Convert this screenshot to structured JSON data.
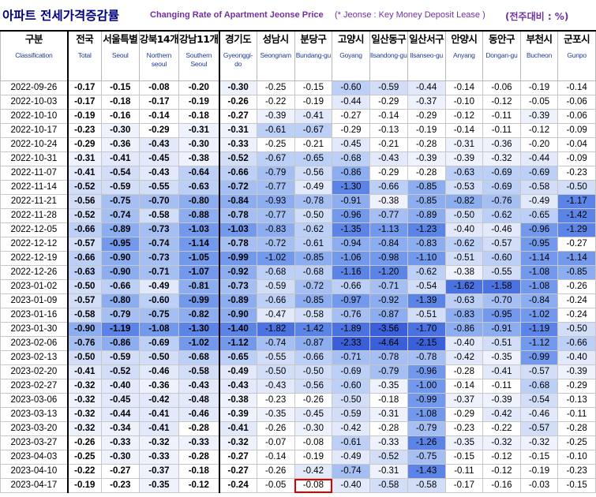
{
  "title": {
    "korean": "아파트 전세가격증감률",
    "english": "Changing Rate of Apartment Jeonse Price",
    "note": "(* Jeonse : Key Money Deposit Lease )",
    "unit": "(전주대비 : %)"
  },
  "colors": {
    "title_korean": "#000080",
    "title_english": "#7030a0",
    "header_english": "#1f3c99",
    "highlight_box": "#e00000"
  },
  "columns": [
    {
      "ko": "구분",
      "en": "Classification"
    },
    {
      "ko": "전국",
      "en": "Total"
    },
    {
      "ko": "서울특별",
      "en": "Seoul"
    },
    {
      "ko": "강북14개",
      "en": "Northern seoul"
    },
    {
      "ko": "강남11개",
      "en": "Southern Seoul"
    },
    {
      "ko": "경기도",
      "en": "Gyeonggi-do"
    },
    {
      "ko": "성남시",
      "en": "Seongnam"
    },
    {
      "ko": "분당구",
      "en": "Bundang-gu"
    },
    {
      "ko": "고양시",
      "en": "Goyang"
    },
    {
      "ko": "일산동구",
      "en": "Ilsandong-gu"
    },
    {
      "ko": "일산서구",
      "en": "Ilsanseo-gu"
    },
    {
      "ko": "안양시",
      "en": "Anyang"
    },
    {
      "ko": "동안구",
      "en": "Dongan-gu"
    },
    {
      "ko": "부천시",
      "en": "Bucheon"
    },
    {
      "ko": "군포시",
      "en": "Gunpo"
    }
  ],
  "rows": [
    {
      "date": "2022-09-26",
      "values": [
        "-0.17",
        "-0.15",
        "-0.08",
        "-0.20",
        "-0.30",
        "-0.25",
        "-0.15",
        "-0.60",
        "-0.59",
        "-0.44",
        "-0.14",
        "-0.06",
        "-0.19",
        "-0.14"
      ]
    },
    {
      "date": "2022-10-03",
      "values": [
        "-0.17",
        "-0.18",
        "-0.17",
        "-0.19",
        "-0.26",
        "-0.22",
        "-0.19",
        "-0.44",
        "-0.29",
        "-0.37",
        "-0.10",
        "-0.12",
        "-0.05",
        "-0.06"
      ]
    },
    {
      "date": "2022-10-10",
      "values": [
        "-0.19",
        "-0.16",
        "-0.14",
        "-0.18",
        "-0.27",
        "-0.39",
        "-0.41",
        "-0.27",
        "-0.14",
        "-0.29",
        "-0.12",
        "-0.11",
        "-0.39",
        "-0.06"
      ]
    },
    {
      "date": "2022-10-17",
      "values": [
        "-0.23",
        "-0.30",
        "-0.29",
        "-0.31",
        "-0.31",
        "-0.61",
        "-0.67",
        "-0.29",
        "-0.13",
        "-0.19",
        "-0.14",
        "-0.11",
        "-0.12",
        "-0.09"
      ]
    },
    {
      "date": "2022-10-24",
      "values": [
        "-0.29",
        "-0.36",
        "-0.43",
        "-0.30",
        "-0.33",
        "-0.25",
        "-0.21",
        "-0.45",
        "-0.21",
        "-0.28",
        "-0.31",
        "-0.36",
        "-0.20",
        "-0.04"
      ]
    },
    {
      "date": "2022-10-31",
      "values": [
        "-0.31",
        "-0.41",
        "-0.45",
        "-0.38",
        "-0.52",
        "-0.67",
        "-0.65",
        "-0.68",
        "-0.43",
        "-0.39",
        "-0.39",
        "-0.32",
        "-0.44",
        "-0.09"
      ]
    },
    {
      "date": "2022-11-07",
      "values": [
        "-0.41",
        "-0.54",
        "-0.43",
        "-0.64",
        "-0.66",
        "-0.79",
        "-0.56",
        "-0.86",
        "-0.29",
        "-0.28",
        "-0.63",
        "-0.69",
        "-0.69",
        "-0.23"
      ]
    },
    {
      "date": "2022-11-14",
      "values": [
        "-0.52",
        "-0.59",
        "-0.55",
        "-0.63",
        "-0.72",
        "-0.77",
        "-0.49",
        "-1.30",
        "-0.66",
        "-0.85",
        "-0.53",
        "-0.69",
        "-0.58",
        "-0.50"
      ]
    },
    {
      "date": "2022-11-21",
      "values": [
        "-0.56",
        "-0.75",
        "-0.70",
        "-0.80",
        "-0.84",
        "-0.93",
        "-0.78",
        "-0.91",
        "-0.38",
        "-0.85",
        "-0.82",
        "-0.76",
        "-0.49",
        "-1.17"
      ]
    },
    {
      "date": "2022-11-28",
      "values": [
        "-0.52",
        "-0.74",
        "-0.58",
        "-0.88",
        "-0.78",
        "-0.77",
        "-0.50",
        "-0.96",
        "-0.77",
        "-0.89",
        "-0.50",
        "-0.62",
        "-0.65",
        "-1.42"
      ]
    },
    {
      "date": "2022-12-05",
      "values": [
        "-0.66",
        "-0.89",
        "-0.73",
        "-1.03",
        "-1.03",
        "-0.83",
        "-0.62",
        "-1.35",
        "-1.13",
        "-1.23",
        "-0.40",
        "-0.46",
        "-0.96",
        "-1.29"
      ]
    },
    {
      "date": "2022-12-12",
      "values": [
        "-0.57",
        "-0.95",
        "-0.74",
        "-1.14",
        "-0.78",
        "-0.72",
        "-0.61",
        "-0.94",
        "-0.84",
        "-0.83",
        "-0.62",
        "-0.57",
        "-0.95",
        "-0.27"
      ]
    },
    {
      "date": "2022-12-19",
      "values": [
        "-0.66",
        "-0.90",
        "-0.73",
        "-1.05",
        "-0.99",
        "-1.02",
        "-0.85",
        "-1.06",
        "-0.98",
        "-1.10",
        "-0.51",
        "-0.60",
        "-1.14",
        "-1.14"
      ]
    },
    {
      "date": "2022-12-26",
      "values": [
        "-0.63",
        "-0.90",
        "-0.71",
        "-1.07",
        "-0.92",
        "-0.68",
        "-0.68",
        "-1.16",
        "-1.20",
        "-0.62",
        "-0.38",
        "-0.55",
        "-1.08",
        "-0.85"
      ]
    },
    {
      "date": "2023-01-02",
      "values": [
        "-0.50",
        "-0.66",
        "-0.49",
        "-0.81",
        "-0.73",
        "-0.59",
        "-0.72",
        "-0.66",
        "-0.71",
        "-0.54",
        "-1.62",
        "-1.58",
        "-1.08",
        "-0.26"
      ]
    },
    {
      "date": "2023-01-09",
      "values": [
        "-0.57",
        "-0.80",
        "-0.60",
        "-0.99",
        "-0.89",
        "-0.66",
        "-0.85",
        "-0.97",
        "-0.92",
        "-1.39",
        "-0.63",
        "-0.70",
        "-0.84",
        "-0.24"
      ]
    },
    {
      "date": "2023-01-16",
      "values": [
        "-0.58",
        "-0.79",
        "-0.75",
        "-0.82",
        "-0.90",
        "-0.47",
        "-0.58",
        "-0.76",
        "-0.87",
        "-0.51",
        "-0.83",
        "-0.95",
        "-1.02",
        "-0.24"
      ]
    },
    {
      "date": "2023-01-30",
      "values": [
        "-0.90",
        "-1.19",
        "-1.08",
        "-1.30",
        "-1.40",
        "-1.82",
        "-1.42",
        "-1.89",
        "-3.56",
        "-1.70",
        "-0.86",
        "-0.91",
        "-1.19",
        "-0.50"
      ]
    },
    {
      "date": "2023-02-06",
      "values": [
        "-0.76",
        "-0.86",
        "-0.69",
        "-1.02",
        "-1.12",
        "-0.74",
        "-0.87",
        "-2.33",
        "-4.64",
        "-2.15",
        "-0.40",
        "-0.51",
        "-1.12",
        "-0.66"
      ]
    },
    {
      "date": "2023-02-13",
      "values": [
        "-0.50",
        "-0.59",
        "-0.50",
        "-0.68",
        "-0.65",
        "-0.55",
        "-0.66",
        "-0.71",
        "-0.78",
        "-0.78",
        "-0.42",
        "-0.35",
        "-0.99",
        "-0.40"
      ]
    },
    {
      "date": "2023-02-20",
      "values": [
        "-0.41",
        "-0.52",
        "-0.46",
        "-0.58",
        "-0.49",
        "-0.50",
        "-0.50",
        "-0.69",
        "-0.79",
        "-0.96",
        "-0.28",
        "-0.41",
        "-0.57",
        "-0.39"
      ]
    },
    {
      "date": "2023-02-27",
      "values": [
        "-0.32",
        "-0.40",
        "-0.36",
        "-0.43",
        "-0.43",
        "-0.43",
        "-0.56",
        "-0.60",
        "-0.35",
        "-1.00",
        "-0.14",
        "-0.11",
        "-0.68",
        "-0.29"
      ]
    },
    {
      "date": "2023-03-06",
      "values": [
        "-0.32",
        "-0.45",
        "-0.42",
        "-0.48",
        "-0.38",
        "-0.23",
        "-0.26",
        "-0.50",
        "-0.18",
        "-0.99",
        "-0.37",
        "-0.39",
        "-0.54",
        "-0.13"
      ]
    },
    {
      "date": "2023-03-13",
      "values": [
        "-0.32",
        "-0.44",
        "-0.41",
        "-0.46",
        "-0.39",
        "-0.35",
        "-0.45",
        "-0.59",
        "-0.31",
        "-1.08",
        "-0.29",
        "-0.42",
        "-0.46",
        "-0.11"
      ]
    },
    {
      "date": "2023-03-20",
      "values": [
        "-0.32",
        "-0.34",
        "-0.41",
        "-0.28",
        "-0.41",
        "-0.26",
        "-0.30",
        "-0.42",
        "-0.28",
        "-0.79",
        "-0.23",
        "-0.22",
        "-0.57",
        "-0.28"
      ]
    },
    {
      "date": "2023-03-27",
      "values": [
        "-0.26",
        "-0.33",
        "-0.32",
        "-0.33",
        "-0.32",
        "-0.07",
        "-0.08",
        "-0.61",
        "-0.33",
        "-1.26",
        "-0.35",
        "-0.32",
        "-0.32",
        "-0.25"
      ]
    },
    {
      "date": "2023-04-03",
      "values": [
        "-0.25",
        "-0.30",
        "-0.33",
        "-0.28",
        "-0.27",
        "-0.14",
        "-0.19",
        "-0.49",
        "-0.52",
        "-0.75",
        "-0.15",
        "-0.12",
        "-0.15",
        "-0.10"
      ]
    },
    {
      "date": "2023-04-10",
      "values": [
        "-0.22",
        "-0.27",
        "-0.37",
        "-0.18",
        "-0.27",
        "-0.26",
        "-0.42",
        "-0.74",
        "-0.31",
        "-1.43",
        "-0.11",
        "-0.12",
        "-0.19",
        "-0.23"
      ]
    },
    {
      "date": "2023-04-17",
      "values": [
        "-0.19",
        "-0.23",
        "-0.35",
        "-0.12",
        "-0.24",
        "-0.05",
        "-0.08",
        "-0.40",
        "-0.58",
        "-0.58",
        "-0.17",
        "-0.16",
        "-0.03",
        "-0.15"
      ]
    }
  ],
  "highlighted_cell": {
    "date": "2023-04-17",
    "column": "분당구",
    "value": "-0.08"
  }
}
